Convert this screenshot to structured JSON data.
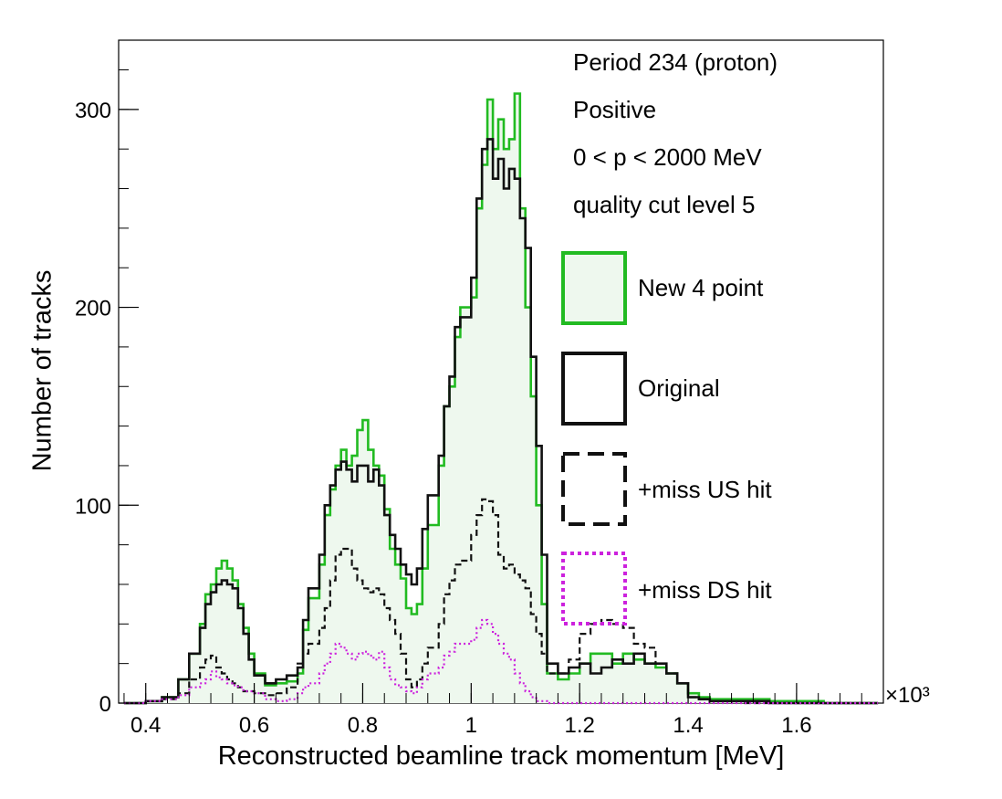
{
  "chart_data": {
    "type": "histogram",
    "xlabel": "Reconstructed beamline track momentum [MeV]",
    "ylabel": "Number of tracks",
    "x_multiplier": "×10³",
    "xlim": [
      0.35,
      1.76
    ],
    "ylim": [
      0,
      335
    ],
    "x_ticks": [
      "0.4",
      "0.6",
      "0.8",
      "1",
      "1.2",
      "1.4",
      "1.6"
    ],
    "y_ticks": [
      "0",
      "100",
      "200",
      "300"
    ],
    "info_lines": [
      "Period 234 (proton)",
      "Positive",
      "0 < p < 2000 MeV",
      "quality cut level 5"
    ],
    "series": [
      {
        "name": "New 4 point",
        "color": "#22bb22",
        "fill": "#eef8ee",
        "style": "solid",
        "points": [
          [
            0.36,
            0
          ],
          [
            0.4,
            1
          ],
          [
            0.43,
            3
          ],
          [
            0.46,
            12
          ],
          [
            0.48,
            25
          ],
          [
            0.5,
            40
          ],
          [
            0.51,
            55
          ],
          [
            0.52,
            60
          ],
          [
            0.53,
            68
          ],
          [
            0.54,
            72
          ],
          [
            0.55,
            68
          ],
          [
            0.56,
            62
          ],
          [
            0.57,
            50
          ],
          [
            0.58,
            38
          ],
          [
            0.59,
            25
          ],
          [
            0.6,
            15
          ],
          [
            0.62,
            9
          ],
          [
            0.64,
            10
          ],
          [
            0.66,
            11
          ],
          [
            0.68,
            15
          ],
          [
            0.69,
            37
          ],
          [
            0.7,
            53
          ],
          [
            0.72,
            70
          ],
          [
            0.73,
            95
          ],
          [
            0.74,
            108
          ],
          [
            0.75,
            120
          ],
          [
            0.76,
            128
          ],
          [
            0.77,
            120
          ],
          [
            0.78,
            125
          ],
          [
            0.79,
            138
          ],
          [
            0.8,
            143
          ],
          [
            0.81,
            128
          ],
          [
            0.82,
            120
          ],
          [
            0.83,
            115
          ],
          [
            0.84,
            98
          ],
          [
            0.85,
            78
          ],
          [
            0.86,
            70
          ],
          [
            0.87,
            63
          ],
          [
            0.88,
            48
          ],
          [
            0.89,
            45
          ],
          [
            0.9,
            50
          ],
          [
            0.91,
            68
          ],
          [
            0.92,
            90
          ],
          [
            0.94,
            120
          ],
          [
            0.95,
            150
          ],
          [
            0.96,
            160
          ],
          [
            0.97,
            185
          ],
          [
            0.98,
            200
          ],
          [
            1.0,
            205
          ],
          [
            1.01,
            250
          ],
          [
            1.02,
            272
          ],
          [
            1.03,
            305
          ],
          [
            1.04,
            280
          ],
          [
            1.05,
            295
          ],
          [
            1.06,
            280
          ],
          [
            1.07,
            285
          ],
          [
            1.08,
            308
          ],
          [
            1.09,
            250
          ],
          [
            1.1,
            200
          ],
          [
            1.11,
            155
          ],
          [
            1.12,
            100
          ],
          [
            1.13,
            50
          ],
          [
            1.14,
            15
          ],
          [
            1.16,
            12
          ],
          [
            1.18,
            15
          ],
          [
            1.2,
            20
          ],
          [
            1.22,
            25
          ],
          [
            1.24,
            25
          ],
          [
            1.26,
            20
          ],
          [
            1.28,
            25
          ],
          [
            1.3,
            22
          ],
          [
            1.32,
            20
          ],
          [
            1.34,
            18
          ],
          [
            1.36,
            15
          ],
          [
            1.38,
            10
          ],
          [
            1.4,
            5
          ],
          [
            1.42,
            3
          ],
          [
            1.44,
            2
          ],
          [
            1.5,
            2
          ],
          [
            1.55,
            1
          ],
          [
            1.6,
            1
          ],
          [
            1.65,
            0
          ],
          [
            1.75,
            0
          ]
        ]
      },
      {
        "name": "Original",
        "color": "#111111",
        "fill": "none",
        "style": "solid",
        "points": [
          [
            0.36,
            0
          ],
          [
            0.4,
            1
          ],
          [
            0.43,
            3
          ],
          [
            0.46,
            12
          ],
          [
            0.48,
            25
          ],
          [
            0.5,
            38
          ],
          [
            0.51,
            50
          ],
          [
            0.52,
            56
          ],
          [
            0.53,
            60
          ],
          [
            0.54,
            62
          ],
          [
            0.55,
            60
          ],
          [
            0.56,
            58
          ],
          [
            0.57,
            48
          ],
          [
            0.58,
            35
          ],
          [
            0.59,
            22
          ],
          [
            0.6,
            14
          ],
          [
            0.62,
            10
          ],
          [
            0.64,
            12
          ],
          [
            0.66,
            14
          ],
          [
            0.68,
            18
          ],
          [
            0.69,
            42
          ],
          [
            0.7,
            58
          ],
          [
            0.72,
            75
          ],
          [
            0.73,
            100
          ],
          [
            0.74,
            110
          ],
          [
            0.75,
            118
          ],
          [
            0.76,
            122
          ],
          [
            0.77,
            118
          ],
          [
            0.78,
            112
          ],
          [
            0.79,
            120
          ],
          [
            0.8,
            120
          ],
          [
            0.81,
            112
          ],
          [
            0.82,
            118
          ],
          [
            0.83,
            110
          ],
          [
            0.84,
            95
          ],
          [
            0.85,
            85
          ],
          [
            0.86,
            78
          ],
          [
            0.87,
            70
          ],
          [
            0.88,
            65
          ],
          [
            0.89,
            60
          ],
          [
            0.9,
            68
          ],
          [
            0.91,
            88
          ],
          [
            0.92,
            105
          ],
          [
            0.94,
            125
          ],
          [
            0.95,
            150
          ],
          [
            0.96,
            165
          ],
          [
            0.97,
            190
          ],
          [
            0.98,
            195
          ],
          [
            1.0,
            215
          ],
          [
            1.01,
            255
          ],
          [
            1.02,
            280
          ],
          [
            1.03,
            285
          ],
          [
            1.04,
            265
          ],
          [
            1.05,
            275
          ],
          [
            1.06,
            260
          ],
          [
            1.07,
            270
          ],
          [
            1.08,
            265
          ],
          [
            1.09,
            245
          ],
          [
            1.1,
            230
          ],
          [
            1.11,
            175
          ],
          [
            1.12,
            130
          ],
          [
            1.13,
            75
          ],
          [
            1.14,
            20
          ],
          [
            1.16,
            15
          ],
          [
            1.18,
            18
          ],
          [
            1.2,
            20
          ],
          [
            1.22,
            15
          ],
          [
            1.24,
            18
          ],
          [
            1.26,
            22
          ],
          [
            1.28,
            20
          ],
          [
            1.3,
            25
          ],
          [
            1.32,
            20
          ],
          [
            1.34,
            20
          ],
          [
            1.36,
            15
          ],
          [
            1.38,
            10
          ],
          [
            1.4,
            3
          ],
          [
            1.42,
            2
          ],
          [
            1.44,
            1
          ],
          [
            1.5,
            1
          ],
          [
            1.55,
            0
          ],
          [
            1.75,
            0
          ]
        ]
      },
      {
        "name": "+miss US hit",
        "color": "#111111",
        "fill": "none",
        "style": "dashed",
        "points": [
          [
            0.36,
            0
          ],
          [
            0.4,
            1
          ],
          [
            0.43,
            2
          ],
          [
            0.46,
            5
          ],
          [
            0.48,
            12
          ],
          [
            0.5,
            18
          ],
          [
            0.51,
            22
          ],
          [
            0.52,
            24
          ],
          [
            0.53,
            18
          ],
          [
            0.54,
            15
          ],
          [
            0.55,
            12
          ],
          [
            0.56,
            10
          ],
          [
            0.57,
            8
          ],
          [
            0.58,
            6
          ],
          [
            0.6,
            5
          ],
          [
            0.62,
            4
          ],
          [
            0.64,
            5
          ],
          [
            0.66,
            8
          ],
          [
            0.68,
            20
          ],
          [
            0.69,
            25
          ],
          [
            0.7,
            30
          ],
          [
            0.72,
            38
          ],
          [
            0.73,
            48
          ],
          [
            0.74,
            62
          ],
          [
            0.75,
            75
          ],
          [
            0.76,
            78
          ],
          [
            0.77,
            78
          ],
          [
            0.78,
            68
          ],
          [
            0.79,
            62
          ],
          [
            0.8,
            58
          ],
          [
            0.81,
            56
          ],
          [
            0.82,
            58
          ],
          [
            0.83,
            55
          ],
          [
            0.84,
            48
          ],
          [
            0.85,
            42
          ],
          [
            0.86,
            35
          ],
          [
            0.87,
            25
          ],
          [
            0.88,
            12
          ],
          [
            0.89,
            8
          ],
          [
            0.9,
            12
          ],
          [
            0.91,
            20
          ],
          [
            0.92,
            28
          ],
          [
            0.94,
            40
          ],
          [
            0.95,
            55
          ],
          [
            0.96,
            62
          ],
          [
            0.97,
            70
          ],
          [
            0.98,
            72
          ],
          [
            1.0,
            85
          ],
          [
            1.01,
            95
          ],
          [
            1.02,
            103
          ],
          [
            1.03,
            102
          ],
          [
            1.04,
            95
          ],
          [
            1.05,
            75
          ],
          [
            1.06,
            68
          ],
          [
            1.07,
            70
          ],
          [
            1.08,
            65
          ],
          [
            1.09,
            62
          ],
          [
            1.1,
            58
          ],
          [
            1.11,
            45
          ],
          [
            1.12,
            35
          ],
          [
            1.13,
            25
          ],
          [
            1.14,
            15
          ],
          [
            1.16,
            15
          ],
          [
            1.18,
            22
          ],
          [
            1.2,
            35
          ],
          [
            1.22,
            40
          ],
          [
            1.24,
            42
          ],
          [
            1.26,
            40
          ],
          [
            1.28,
            38
          ],
          [
            1.3,
            30
          ],
          [
            1.32,
            28
          ],
          [
            1.34,
            20
          ],
          [
            1.36,
            15
          ],
          [
            1.38,
            10
          ],
          [
            1.4,
            3
          ],
          [
            1.42,
            2
          ],
          [
            1.44,
            1
          ],
          [
            1.5,
            0
          ],
          [
            1.75,
            0
          ]
        ]
      },
      {
        "name": "+miss DS hit",
        "color": "#cc22dd",
        "fill": "none",
        "style": "dotted",
        "points": [
          [
            0.36,
            0
          ],
          [
            0.4,
            1
          ],
          [
            0.43,
            2
          ],
          [
            0.46,
            4
          ],
          [
            0.48,
            8
          ],
          [
            0.5,
            10
          ],
          [
            0.51,
            12
          ],
          [
            0.52,
            16
          ],
          [
            0.53,
            13
          ],
          [
            0.54,
            12
          ],
          [
            0.55,
            10
          ],
          [
            0.56,
            9
          ],
          [
            0.57,
            8
          ],
          [
            0.58,
            6
          ],
          [
            0.6,
            5
          ],
          [
            0.62,
            2
          ],
          [
            0.64,
            1
          ],
          [
            0.66,
            2
          ],
          [
            0.68,
            5
          ],
          [
            0.69,
            8
          ],
          [
            0.7,
            10
          ],
          [
            0.72,
            15
          ],
          [
            0.73,
            20
          ],
          [
            0.74,
            25
          ],
          [
            0.75,
            30
          ],
          [
            0.76,
            28
          ],
          [
            0.77,
            25
          ],
          [
            0.78,
            22
          ],
          [
            0.79,
            25
          ],
          [
            0.8,
            26
          ],
          [
            0.81,
            24
          ],
          [
            0.82,
            22
          ],
          [
            0.83,
            26
          ],
          [
            0.84,
            18
          ],
          [
            0.85,
            12
          ],
          [
            0.86,
            9
          ],
          [
            0.87,
            8
          ],
          [
            0.88,
            6
          ],
          [
            0.89,
            5
          ],
          [
            0.9,
            8
          ],
          [
            0.91,
            12
          ],
          [
            0.92,
            15
          ],
          [
            0.94,
            18
          ],
          [
            0.95,
            24
          ],
          [
            0.96,
            26
          ],
          [
            0.97,
            30
          ],
          [
            0.98,
            30
          ],
          [
            1.0,
            32
          ],
          [
            1.01,
            38
          ],
          [
            1.02,
            42
          ],
          [
            1.03,
            40
          ],
          [
            1.04,
            35
          ],
          [
            1.05,
            30
          ],
          [
            1.06,
            25
          ],
          [
            1.07,
            22
          ],
          [
            1.08,
            15
          ],
          [
            1.09,
            10
          ],
          [
            1.1,
            6
          ],
          [
            1.11,
            3
          ],
          [
            1.12,
            1
          ],
          [
            1.14,
            0
          ],
          [
            1.75,
            0
          ]
        ]
      }
    ]
  }
}
